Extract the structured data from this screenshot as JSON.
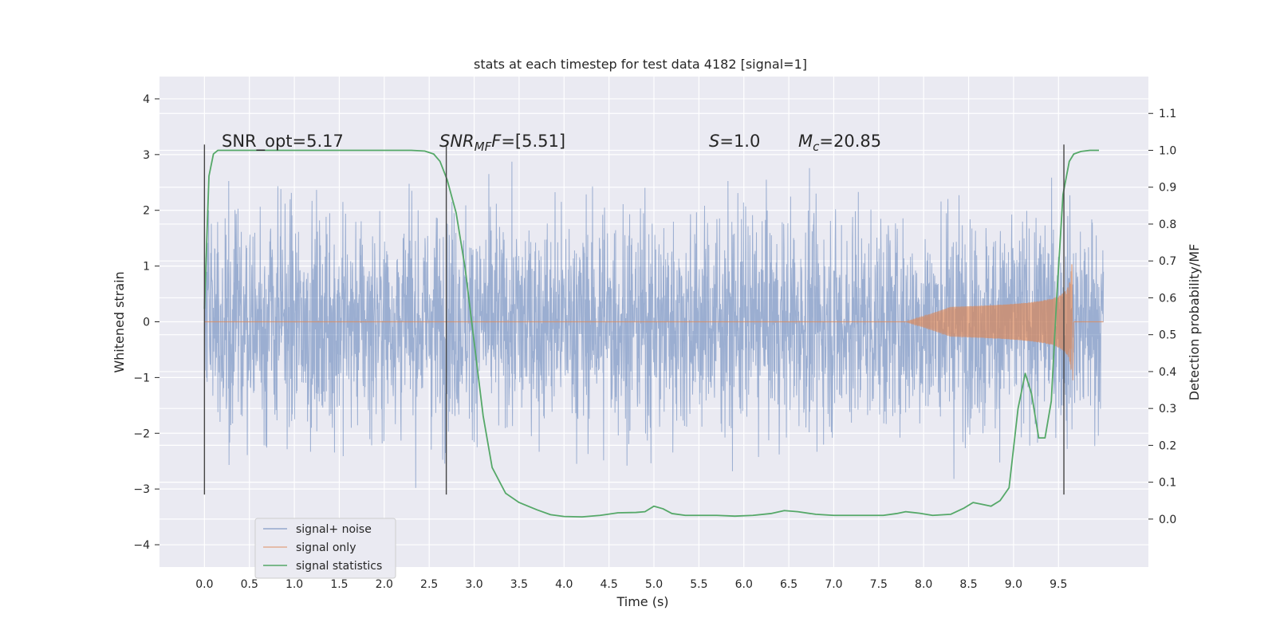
{
  "chart_data": {
    "type": "line",
    "title": "stats at each timestep for test data 4182 [signal=1]",
    "xlabel": "Time (s)",
    "ylabel": "Whitened strain",
    "ylabel_right": "Detection probability/MF",
    "xlim": [
      -0.5,
      10.5
    ],
    "ylim": [
      -4.4,
      4.4
    ],
    "ylim_right": [
      -0.13,
      1.2
    ],
    "x_ticks": [
      "0.0",
      "0.5",
      "1.0",
      "1.5",
      "2.0",
      "2.5",
      "3.0",
      "3.5",
      "4.0",
      "4.5",
      "5.0",
      "5.5",
      "6.0",
      "6.5",
      "7.0",
      "7.5",
      "8.0",
      "8.5",
      "9.0",
      "9.5"
    ],
    "y_ticks": [
      "4",
      "3",
      "2",
      "1",
      "0",
      "−1",
      "−2",
      "−3",
      "−4"
    ],
    "y_right_ticks": [
      "1.1",
      "1.0",
      "0.9",
      "0.8",
      "0.7",
      "0.6",
      "0.5",
      "0.4",
      "0.3",
      "0.2",
      "0.1",
      "0.0"
    ],
    "grid": true,
    "legend_position": "lower-left",
    "annotations": {
      "snr_opt": "SNR_opt=5.17",
      "snr_mf_main": "SNR",
      "snr_mf_sub": "MF",
      "snr_mf_value": "=[5.51]",
      "s_sym": "S",
      "s_value": "=1.0",
      "mc_sym": "M",
      "mc_sub": "c",
      "mc_value": "=20.85"
    },
    "vertical_lines_x": [
      0.0,
      2.69,
      9.56
    ],
    "series": [
      {
        "name": "signal+ noise",
        "color": "#4c72b0",
        "description_values": "whitened noise, approx. gaussian, amplitude within [-4, 4]",
        "x_range": [
          0.0,
          10.0
        ]
      },
      {
        "name": "signal only",
        "color": "#dd8452",
        "chirp_peak_time": 9.65,
        "chirp_peak_amplitude": 1.15
      },
      {
        "name": "signal statistics",
        "color": "#55a868",
        "axis": "right",
        "x": [
          0.0,
          0.05,
          0.1,
          0.15,
          0.25,
          0.4,
          0.6,
          1.0,
          1.5,
          2.0,
          2.3,
          2.45,
          2.55,
          2.62,
          2.7,
          2.8,
          2.9,
          3.0,
          3.1,
          3.2,
          3.35,
          3.5,
          3.7,
          3.85,
          4.0,
          4.2,
          4.4,
          4.6,
          4.8,
          4.9,
          5.0,
          5.1,
          5.2,
          5.35,
          5.5,
          5.7,
          5.9,
          6.1,
          6.3,
          6.45,
          6.6,
          6.8,
          7.0,
          7.2,
          7.4,
          7.55,
          7.7,
          7.8,
          7.95,
          8.1,
          8.3,
          8.45,
          8.55,
          8.65,
          8.75,
          8.85,
          8.95,
          9.05,
          9.13,
          9.2,
          9.28,
          9.35,
          9.42,
          9.48,
          9.55,
          9.62,
          9.67,
          9.75,
          9.85,
          9.95
        ],
        "values": [
          0.57,
          0.93,
          0.99,
          1.0,
          1.0,
          1.0,
          1.0,
          1.0,
          1.0,
          1.0,
          1.0,
          0.998,
          0.99,
          0.97,
          0.92,
          0.83,
          0.68,
          0.48,
          0.28,
          0.14,
          0.07,
          0.045,
          0.025,
          0.012,
          0.007,
          0.006,
          0.01,
          0.017,
          0.018,
          0.02,
          0.035,
          0.028,
          0.015,
          0.01,
          0.01,
          0.01,
          0.008,
          0.01,
          0.015,
          0.023,
          0.02,
          0.013,
          0.01,
          0.01,
          0.01,
          0.01,
          0.015,
          0.02,
          0.016,
          0.01,
          0.013,
          0.03,
          0.045,
          0.04,
          0.035,
          0.05,
          0.085,
          0.3,
          0.395,
          0.34,
          0.22,
          0.22,
          0.32,
          0.6,
          0.88,
          0.97,
          0.99,
          0.997,
          1.0,
          1.0
        ]
      }
    ]
  }
}
